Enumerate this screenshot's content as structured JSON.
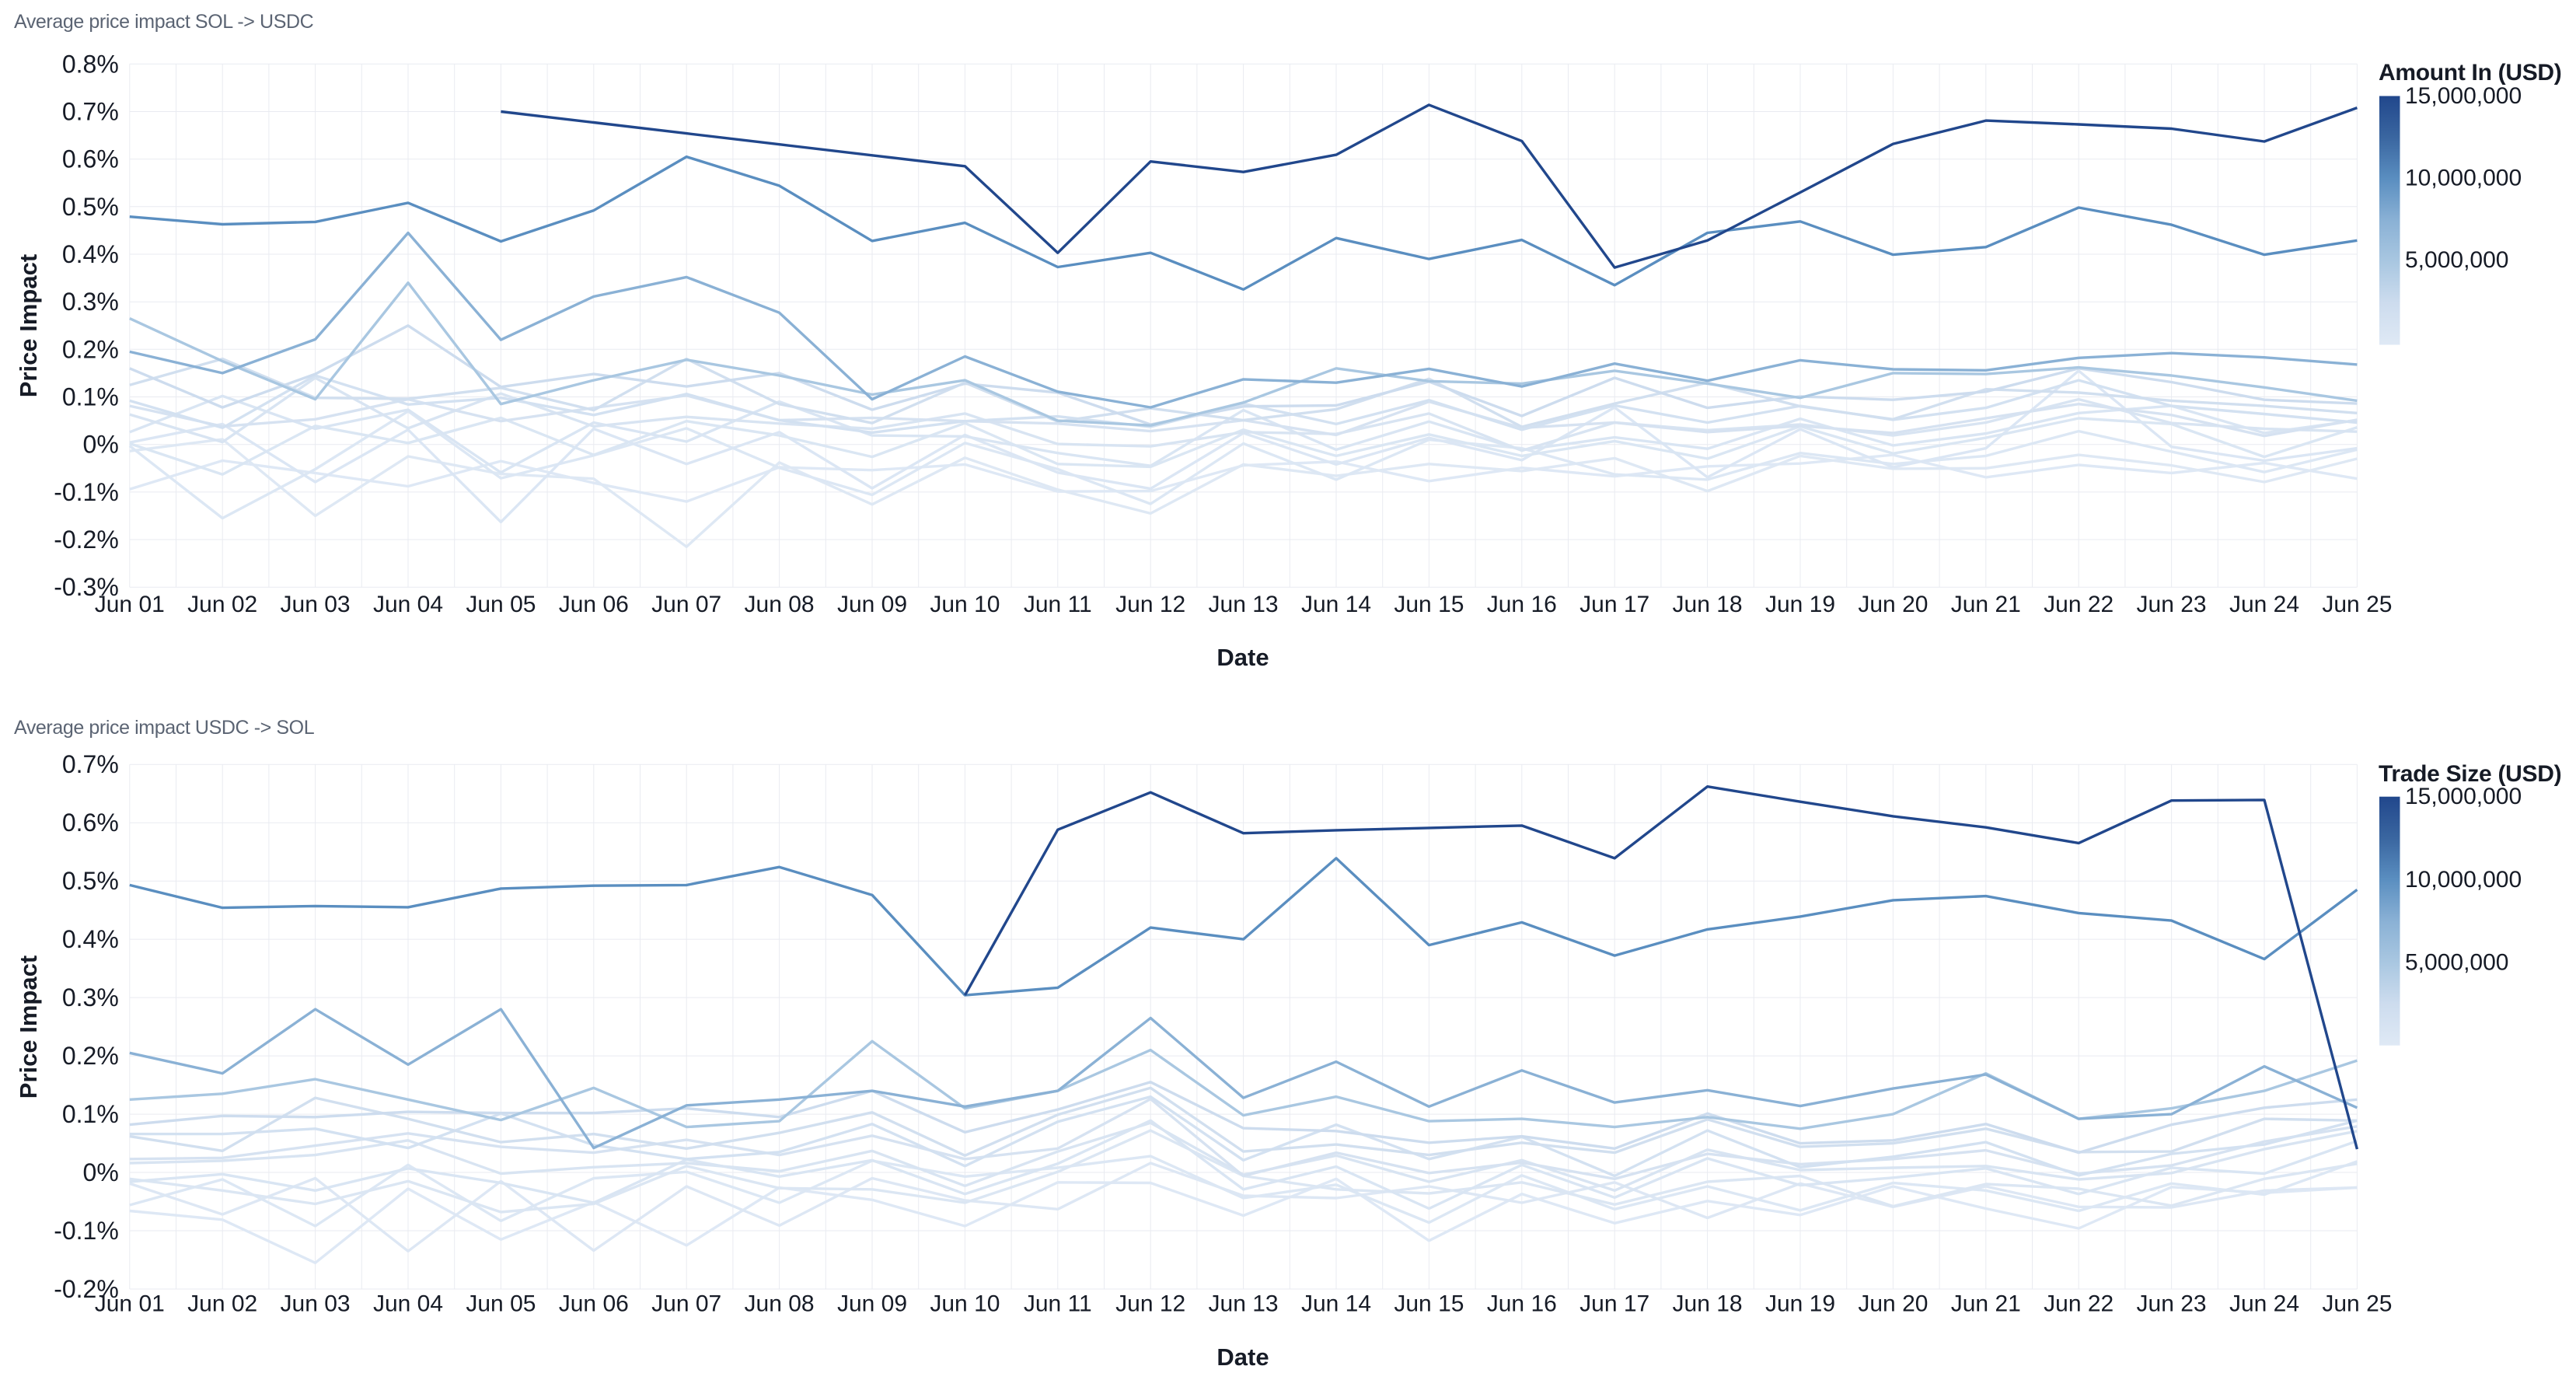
{
  "page": {
    "background": "#ffffff"
  },
  "style": {
    "grid_color": "#e9ebf1",
    "text_color": "#161b26",
    "title_color": "#5b6473",
    "line_width": 3.4,
    "colorscale": [
      "#dfe9f5",
      "#cddcee",
      "#a9c7e1",
      "#8ab1d5",
      "#5a8ec0",
      "#3a66a0",
      "#21478c"
    ]
  },
  "chart_data": [
    {
      "type": "line",
      "title": "Average price impact SOL -> USDC",
      "xlabel": "Date",
      "ylabel": "Price Impact",
      "x": [
        "Jun 01",
        "Jun 02",
        "Jun 03",
        "Jun 04",
        "Jun 05",
        "Jun 06",
        "Jun 07",
        "Jun 08",
        "Jun 09",
        "Jun 10",
        "Jun 11",
        "Jun 12",
        "Jun 13",
        "Jun 14",
        "Jun 15",
        "Jun 16",
        "Jun 17",
        "Jun 18",
        "Jun 19",
        "Jun 20",
        "Jun 21",
        "Jun 22",
        "Jun 23",
        "Jun 24",
        "Jun 25"
      ],
      "ylim": [
        -0.3,
        0.8
      ],
      "y_ticks": [
        "0.8%",
        "0.7%",
        "0.6%",
        "0.5%",
        "0.4%",
        "0.3%",
        "0.2%",
        "0.1%",
        "0%",
        "-0.1%",
        "-0.2%",
        "-0.3%"
      ],
      "grid": true,
      "legend_title": "Amount In (USD)",
      "legend_ticks": [
        "15,000,000",
        "10,000,000",
        "5,000,000"
      ],
      "legend_position": "right",
      "color_by": "Amount In (USD)",
      "color_domain": [
        0,
        15000000
      ],
      "series": [
        {
          "name": "100,000",
          "amount_usd": 100000,
          "values": [
            -0.094,
            -0.034,
            -0.06,
            -0.088,
            -0.035,
            -0.081,
            -0.12,
            -0.048,
            -0.054,
            -0.042,
            -0.099,
            -0.098,
            -0.044,
            -0.036,
            -0.077,
            -0.049,
            -0.067,
            -0.046,
            -0.04,
            -0.022,
            -0.069,
            -0.043,
            -0.06,
            -0.039,
            -0.072
          ]
        },
        {
          "name": "200,000",
          "amount_usd": 200000,
          "values": [
            -0.014,
            0.011,
            -0.15,
            -0.025,
            -0.062,
            -0.072,
            -0.215,
            -0.038,
            -0.126,
            -0.028,
            -0.095,
            -0.145,
            -0.042,
            -0.066,
            -0.041,
            -0.056,
            -0.029,
            -0.098,
            -0.024,
            -0.051,
            -0.05,
            -0.022,
            -0.044,
            -0.079,
            -0.03
          ]
        },
        {
          "name": "350,000",
          "amount_usd": 350000,
          "values": [
            -0.003,
            -0.155,
            -0.052,
            0.07,
            -0.071,
            -0.023,
            0.034,
            -0.049,
            -0.106,
            0.003,
            -0.052,
            -0.125,
            0.002,
            -0.074,
            0.01,
            -0.008,
            -0.063,
            -0.074,
            -0.018,
            -0.041,
            -0.024,
            0.028,
            -0.015,
            -0.058,
            -0.011
          ]
        },
        {
          "name": "500,000",
          "amount_usd": 500000,
          "values": [
            0.004,
            0.043,
            -0.079,
            0.031,
            -0.163,
            0.033,
            -0.041,
            0.026,
            -0.092,
            0.02,
            -0.059,
            -0.093,
            0.024,
            -0.042,
            0.014,
            -0.033,
            0.078,
            -0.069,
            0.032,
            -0.048,
            -0.008,
            0.155,
            -0.005,
            -0.034,
            -0.008
          ]
        },
        {
          "name": "650,000",
          "amount_usd": 650000,
          "values": [
            0.002,
            -0.063,
            0.039,
            0.003,
            0.056,
            -0.022,
            0.049,
            0.019,
            -0.026,
            0.045,
            -0.041,
            -0.047,
            0.031,
            -0.024,
            0.021,
            -0.024,
            0.007,
            -0.03,
            0.038,
            -0.019,
            0.014,
            0.055,
            0.043,
            -0.026,
            0.036
          ]
        },
        {
          "name": "800,000",
          "amount_usd": 800000,
          "values": [
            0.026,
            0.102,
            0.033,
            0.073,
            -0.059,
            0.046,
            0.006,
            0.09,
            0.019,
            0.017,
            -0.018,
            -0.045,
            0.072,
            -0.011,
            0.048,
            -0.012,
            0.015,
            -0.009,
            0.054,
            -0.002,
            0.023,
            0.066,
            0.081,
            0.024,
            0.051
          ]
        },
        {
          "name": "1,000,000",
          "amount_usd": 1000000,
          "values": [
            0.063,
            0.005,
            0.14,
            0.034,
            0.107,
            0.038,
            0.058,
            0.044,
            0.033,
            0.065,
            0.001,
            -0.004,
            0.026,
            0.022,
            0.065,
            -0.013,
            0.046,
            0.03,
            0.042,
            0.019,
            0.046,
            0.095,
            0.045,
            0.033,
            0.027
          ]
        },
        {
          "name": "1,300,000",
          "amount_usd": 1300000,
          "values": [
            0.081,
            0.038,
            0.053,
            0.095,
            0.049,
            0.077,
            0.103,
            0.051,
            0.056,
            0.049,
            0.044,
            0.028,
            0.051,
            0.02,
            0.09,
            0.035,
            0.046,
            0.026,
            0.039,
            0.024,
            0.055,
            0.085,
            0.062,
            0.018,
            0.052
          ]
        },
        {
          "name": "1,600,000",
          "amount_usd": 1600000,
          "values": [
            0.092,
            0.035,
            0.145,
            0.084,
            0.098,
            0.062,
            0.106,
            0.051,
            0.025,
            0.049,
            0.059,
            0.037,
            0.086,
            0.043,
            0.093,
            0.031,
            0.082,
            0.046,
            0.081,
            0.052,
            0.077,
            0.135,
            0.081,
            0.064,
            0.046
          ]
        },
        {
          "name": "2,000,000",
          "amount_usd": 2000000,
          "values": [
            0.125,
            0.18,
            0.098,
            0.096,
            0.119,
            0.072,
            0.18,
            0.085,
            0.045,
            0.13,
            0.048,
            0.076,
            0.051,
            0.074,
            0.138,
            0.037,
            0.086,
            0.13,
            0.08,
            0.053,
            0.116,
            0.109,
            0.092,
            0.081,
            0.066
          ]
        },
        {
          "name": "2,500,000",
          "amount_usd": 2500000,
          "values": [
            0.16,
            0.078,
            0.148,
            0.25,
            0.121,
            0.148,
            0.122,
            0.15,
            0.073,
            0.128,
            0.109,
            0.042,
            0.08,
            0.082,
            0.132,
            0.06,
            0.14,
            0.077,
            0.101,
            0.094,
            0.111,
            0.16,
            0.131,
            0.094,
            0.086
          ]
        },
        {
          "name": "5,000,000",
          "amount_usd": 5000000,
          "values": [
            0.265,
            0.175,
            0.095,
            0.34,
            0.085,
            0.135,
            0.178,
            0.145,
            0.105,
            0.135,
            0.05,
            0.04,
            0.088,
            0.16,
            0.133,
            0.128,
            0.155,
            0.128,
            0.098,
            0.15,
            0.148,
            0.162,
            0.145,
            0.12,
            0.092
          ]
        },
        {
          "name": "7,500,000",
          "amount_usd": 7500000,
          "values": [
            0.195,
            0.15,
            0.221,
            0.445,
            0.22,
            0.311,
            0.352,
            0.277,
            0.095,
            0.185,
            0.111,
            0.078,
            0.137,
            0.13,
            0.159,
            0.122,
            0.17,
            0.134,
            0.177,
            0.158,
            0.156,
            0.182,
            0.192,
            0.183,
            0.168
          ]
        },
        {
          "name": "10,000,000",
          "amount_usd": 10000000,
          "values": [
            0.479,
            0.463,
            0.468,
            0.508,
            0.427,
            0.492,
            0.605,
            0.544,
            0.428,
            0.466,
            0.373,
            0.403,
            0.326,
            0.434,
            0.39,
            0.43,
            0.335,
            0.445,
            0.469,
            0.399,
            0.415,
            0.498,
            0.462,
            0.399,
            0.429
          ]
        },
        {
          "name": "15,000,000",
          "amount_usd": 15000000,
          "values": [
            null,
            null,
            null,
            null,
            0.7,
            0.677,
            0.654,
            0.631,
            0.608,
            0.585,
            0.403,
            0.595,
            0.573,
            0.609,
            0.714,
            0.638,
            0.372,
            0.429,
            0.53,
            0.632,
            0.681,
            0.673,
            0.664,
            0.637,
            0.708
          ]
        }
      ]
    },
    {
      "type": "line",
      "title": "Average price impact USDC -> SOL",
      "xlabel": "Date",
      "ylabel": "Price Impact",
      "x": [
        "Jun 01",
        "Jun 02",
        "Jun 03",
        "Jun 04",
        "Jun 05",
        "Jun 06",
        "Jun 07",
        "Jun 08",
        "Jun 09",
        "Jun 10",
        "Jun 11",
        "Jun 12",
        "Jun 13",
        "Jun 14",
        "Jun 15",
        "Jun 16",
        "Jun 17",
        "Jun 18",
        "Jun 19",
        "Jun 20",
        "Jun 21",
        "Jun 22",
        "Jun 23",
        "Jun 24",
        "Jun 25"
      ],
      "ylim": [
        -0.2,
        0.7
      ],
      "y_ticks": [
        "0.7%",
        "0.6%",
        "0.5%",
        "0.4%",
        "0.3%",
        "0.2%",
        "0.1%",
        "0%",
        "-0.1%",
        "-0.2%"
      ],
      "grid": true,
      "legend_title": "Trade Size (USD)",
      "legend_ticks": [
        "15,000,000",
        "10,000,000",
        "5,000,000"
      ],
      "legend_position": "right",
      "color_by": "Trade Size (USD)",
      "color_domain": [
        0,
        15000000
      ],
      "series": [
        {
          "name": "150,000",
          "amount_usd": 150000,
          "values": [
            -0.066,
            -0.081,
            -0.155,
            -0.028,
            -0.115,
            -0.051,
            -0.125,
            -0.026,
            -0.047,
            -0.092,
            -0.017,
            -0.018,
            -0.074,
            -0.011,
            -0.117,
            -0.037,
            -0.087,
            -0.049,
            -0.073,
            -0.024,
            -0.062,
            -0.096,
            -0.025,
            -0.035,
            -0.026
          ]
        },
        {
          "name": "300,000",
          "amount_usd": 300000,
          "values": [
            -0.019,
            -0.072,
            -0.01,
            -0.135,
            -0.015,
            -0.134,
            -0.024,
            -0.091,
            -0.01,
            -0.048,
            -0.063,
            0.016,
            -0.04,
            -0.044,
            -0.024,
            -0.052,
            -0.017,
            -0.078,
            -0.019,
            -0.059,
            -0.024,
            -0.059,
            -0.06,
            -0.031,
            -0.026
          ]
        },
        {
          "name": "450,000",
          "amount_usd": 450000,
          "values": [
            -0.056,
            -0.012,
            -0.092,
            0.013,
            -0.083,
            -0.01,
            0.001,
            -0.052,
            0.02,
            -0.007,
            0.008,
            0.028,
            -0.044,
            -0.021,
            -0.086,
            -0.005,
            -0.063,
            -0.024,
            -0.065,
            -0.018,
            -0.031,
            -0.066,
            -0.019,
            -0.038,
            0.019
          ]
        },
        {
          "name": "600,000",
          "amount_usd": 600000,
          "values": [
            -0.011,
            -0.031,
            -0.054,
            -0.015,
            -0.068,
            -0.054,
            0.011,
            -0.027,
            -0.029,
            -0.052,
            0.001,
            0.072,
            -0.006,
            -0.029,
            -0.036,
            -0.017,
            -0.055,
            -0.016,
            -0.006,
            -0.058,
            -0.02,
            -0.028,
            -0.057,
            -0.011,
            0.015
          ]
        },
        {
          "name": "800,000",
          "amount_usd": 800000,
          "values": [
            -0.016,
            -0.003,
            -0.031,
            0.007,
            -0.018,
            -0.052,
            0.022,
            -0.007,
            0.021,
            -0.037,
            0.015,
            0.089,
            -0.029,
            0.01,
            -0.062,
            0.013,
            -0.043,
            0.024,
            -0.022,
            -0.009,
            0.007,
            -0.037,
            0.008,
            -0.002,
            0.054
          ]
        },
        {
          "name": "1,000,000",
          "amount_usd": 1000000,
          "values": [
            0.016,
            0.02,
            0.03,
            0.055,
            -0.002,
            0.009,
            0.016,
            0.002,
            0.037,
            -0.023,
            0.036,
            0.085,
            -0.004,
            0.029,
            -0.016,
            0.021,
            -0.031,
            0.039,
            0.004,
            0.008,
            0.011,
            -0.012,
            -0.001,
            0.04,
            0.071
          ]
        },
        {
          "name": "1,300,000",
          "amount_usd": 1300000,
          "values": [
            0.023,
            0.025,
            0.046,
            0.067,
            0.044,
            0.034,
            0.056,
            0.03,
            0.063,
            0.023,
            0.041,
            0.126,
            -0.006,
            0.034,
            -0.001,
            0.017,
            -0.011,
            0.032,
            0.014,
            0.023,
            0.038,
            -0.002,
            0.012,
            0.053,
            0.079
          ]
        },
        {
          "name": "1,600,000",
          "amount_usd": 1600000,
          "values": [
            0.066,
            0.066,
            0.075,
            0.042,
            0.101,
            0.047,
            0.023,
            0.035,
            0.083,
            0.011,
            0.087,
            0.13,
            0.021,
            0.082,
            0.023,
            0.061,
            -0.006,
            0.072,
            0.009,
            0.027,
            0.052,
            -0.005,
            0.032,
            0.048,
            0.089
          ]
        },
        {
          "name": "2,000,000",
          "amount_usd": 2000000,
          "values": [
            0.062,
            0.037,
            0.128,
            0.092,
            0.052,
            0.066,
            0.041,
            0.068,
            0.103,
            0.029,
            0.099,
            0.145,
            0.036,
            0.048,
            0.03,
            0.051,
            0.034,
            0.091,
            0.044,
            0.05,
            0.075,
            0.035,
            0.036,
            0.092,
            0.089
          ]
        },
        {
          "name": "2,500,000",
          "amount_usd": 2500000,
          "values": [
            0.082,
            0.097,
            0.095,
            0.104,
            0.102,
            0.102,
            0.11,
            0.095,
            0.14,
            0.069,
            0.108,
            0.155,
            0.076,
            0.071,
            0.051,
            0.062,
            0.041,
            0.101,
            0.05,
            0.055,
            0.083,
            0.034,
            0.082,
            0.111,
            0.125
          ]
        },
        {
          "name": "5,000,000",
          "amount_usd": 5000000,
          "values": [
            0.125,
            0.135,
            0.16,
            0.125,
            0.09,
            0.145,
            0.078,
            0.088,
            0.225,
            0.11,
            0.14,
            0.21,
            0.098,
            0.13,
            0.088,
            0.092,
            0.078,
            0.095,
            0.075,
            0.1,
            0.17,
            0.092,
            0.11,
            0.14,
            0.192
          ]
        },
        {
          "name": "7,500,000",
          "amount_usd": 7500000,
          "values": [
            0.205,
            0.17,
            0.28,
            0.185,
            0.28,
            0.042,
            0.115,
            0.125,
            0.14,
            0.113,
            0.14,
            0.265,
            0.128,
            0.19,
            0.113,
            0.175,
            0.12,
            0.141,
            0.114,
            0.144,
            0.168,
            0.092,
            0.1,
            0.182,
            0.111
          ]
        },
        {
          "name": "10,000,000",
          "amount_usd": 10000000,
          "values": [
            0.493,
            0.454,
            0.457,
            0.455,
            0.487,
            0.492,
            0.493,
            0.524,
            0.476,
            0.304,
            0.317,
            0.42,
            0.4,
            0.539,
            0.39,
            0.429,
            0.372,
            0.417,
            0.439,
            0.467,
            0.474,
            0.445,
            0.432,
            0.366,
            0.485
          ]
        },
        {
          "name": "15,000,000",
          "amount_usd": 15000000,
          "values": [
            null,
            null,
            null,
            null,
            null,
            null,
            null,
            null,
            null,
            0.304,
            0.588,
            0.652,
            0.582,
            0.587,
            0.591,
            0.595,
            0.539,
            0.662,
            0.636,
            0.611,
            0.592,
            0.565,
            0.638,
            0.639,
            0.04
          ]
        }
      ]
    }
  ]
}
